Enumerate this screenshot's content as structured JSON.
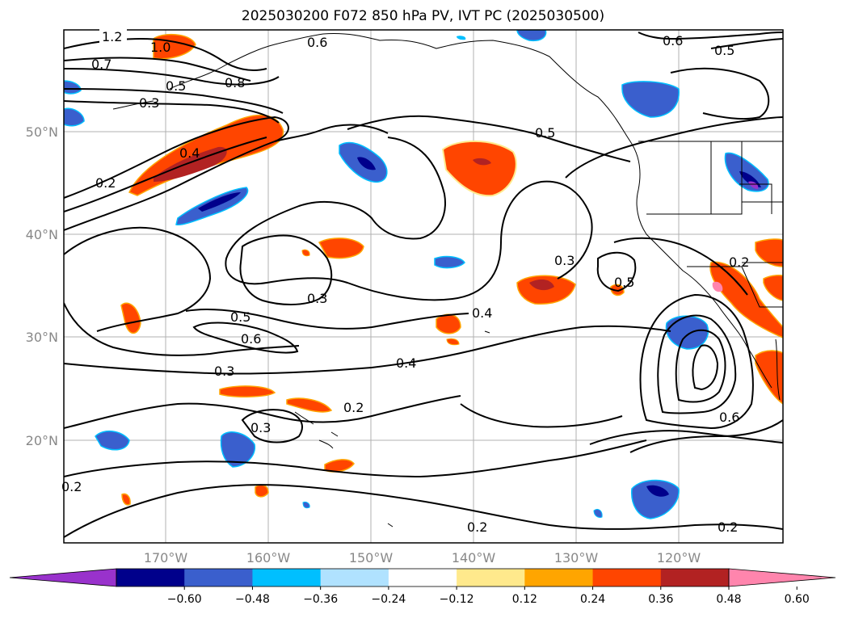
{
  "title": "2025030200 F072 850 hPa PV, IVT PC (2025030500)",
  "lat_labels": [
    "50°N",
    "40°N",
    "30°N",
    "20°N"
  ],
  "lon_labels": [
    "170°W",
    "160°W",
    "150°W",
    "140°W",
    "130°W",
    "120°W"
  ],
  "contour_labels": [
    "1.2",
    "1.0",
    "0.7",
    "0.6",
    "0.5",
    "0.8",
    "0.3",
    "0.6",
    "0.5",
    "0.4",
    "0.2",
    "0.5",
    "0.3",
    "0.3",
    "0.5",
    "0.4",
    "0.5",
    "0.6",
    "0.3",
    "0.4",
    "0.2",
    "0.3",
    "0.2",
    "0.6",
    "0.2",
    "0.2",
    "0.2"
  ],
  "colorbar": {
    "ticks": [
      "−0.60",
      "−0.48",
      "−0.36",
      "−0.24",
      "−0.12",
      "0.12",
      "0.24",
      "0.36",
      "0.48",
      "0.60"
    ],
    "colors": [
      "#9932cc",
      "#00008b",
      "#3a5fcd",
      "#00bfff",
      "#b0e2ff",
      "#ffffff",
      "#ffe98c",
      "#ffa500",
      "#ff4500",
      "#b22222",
      "#ff85ad"
    ]
  }
}
